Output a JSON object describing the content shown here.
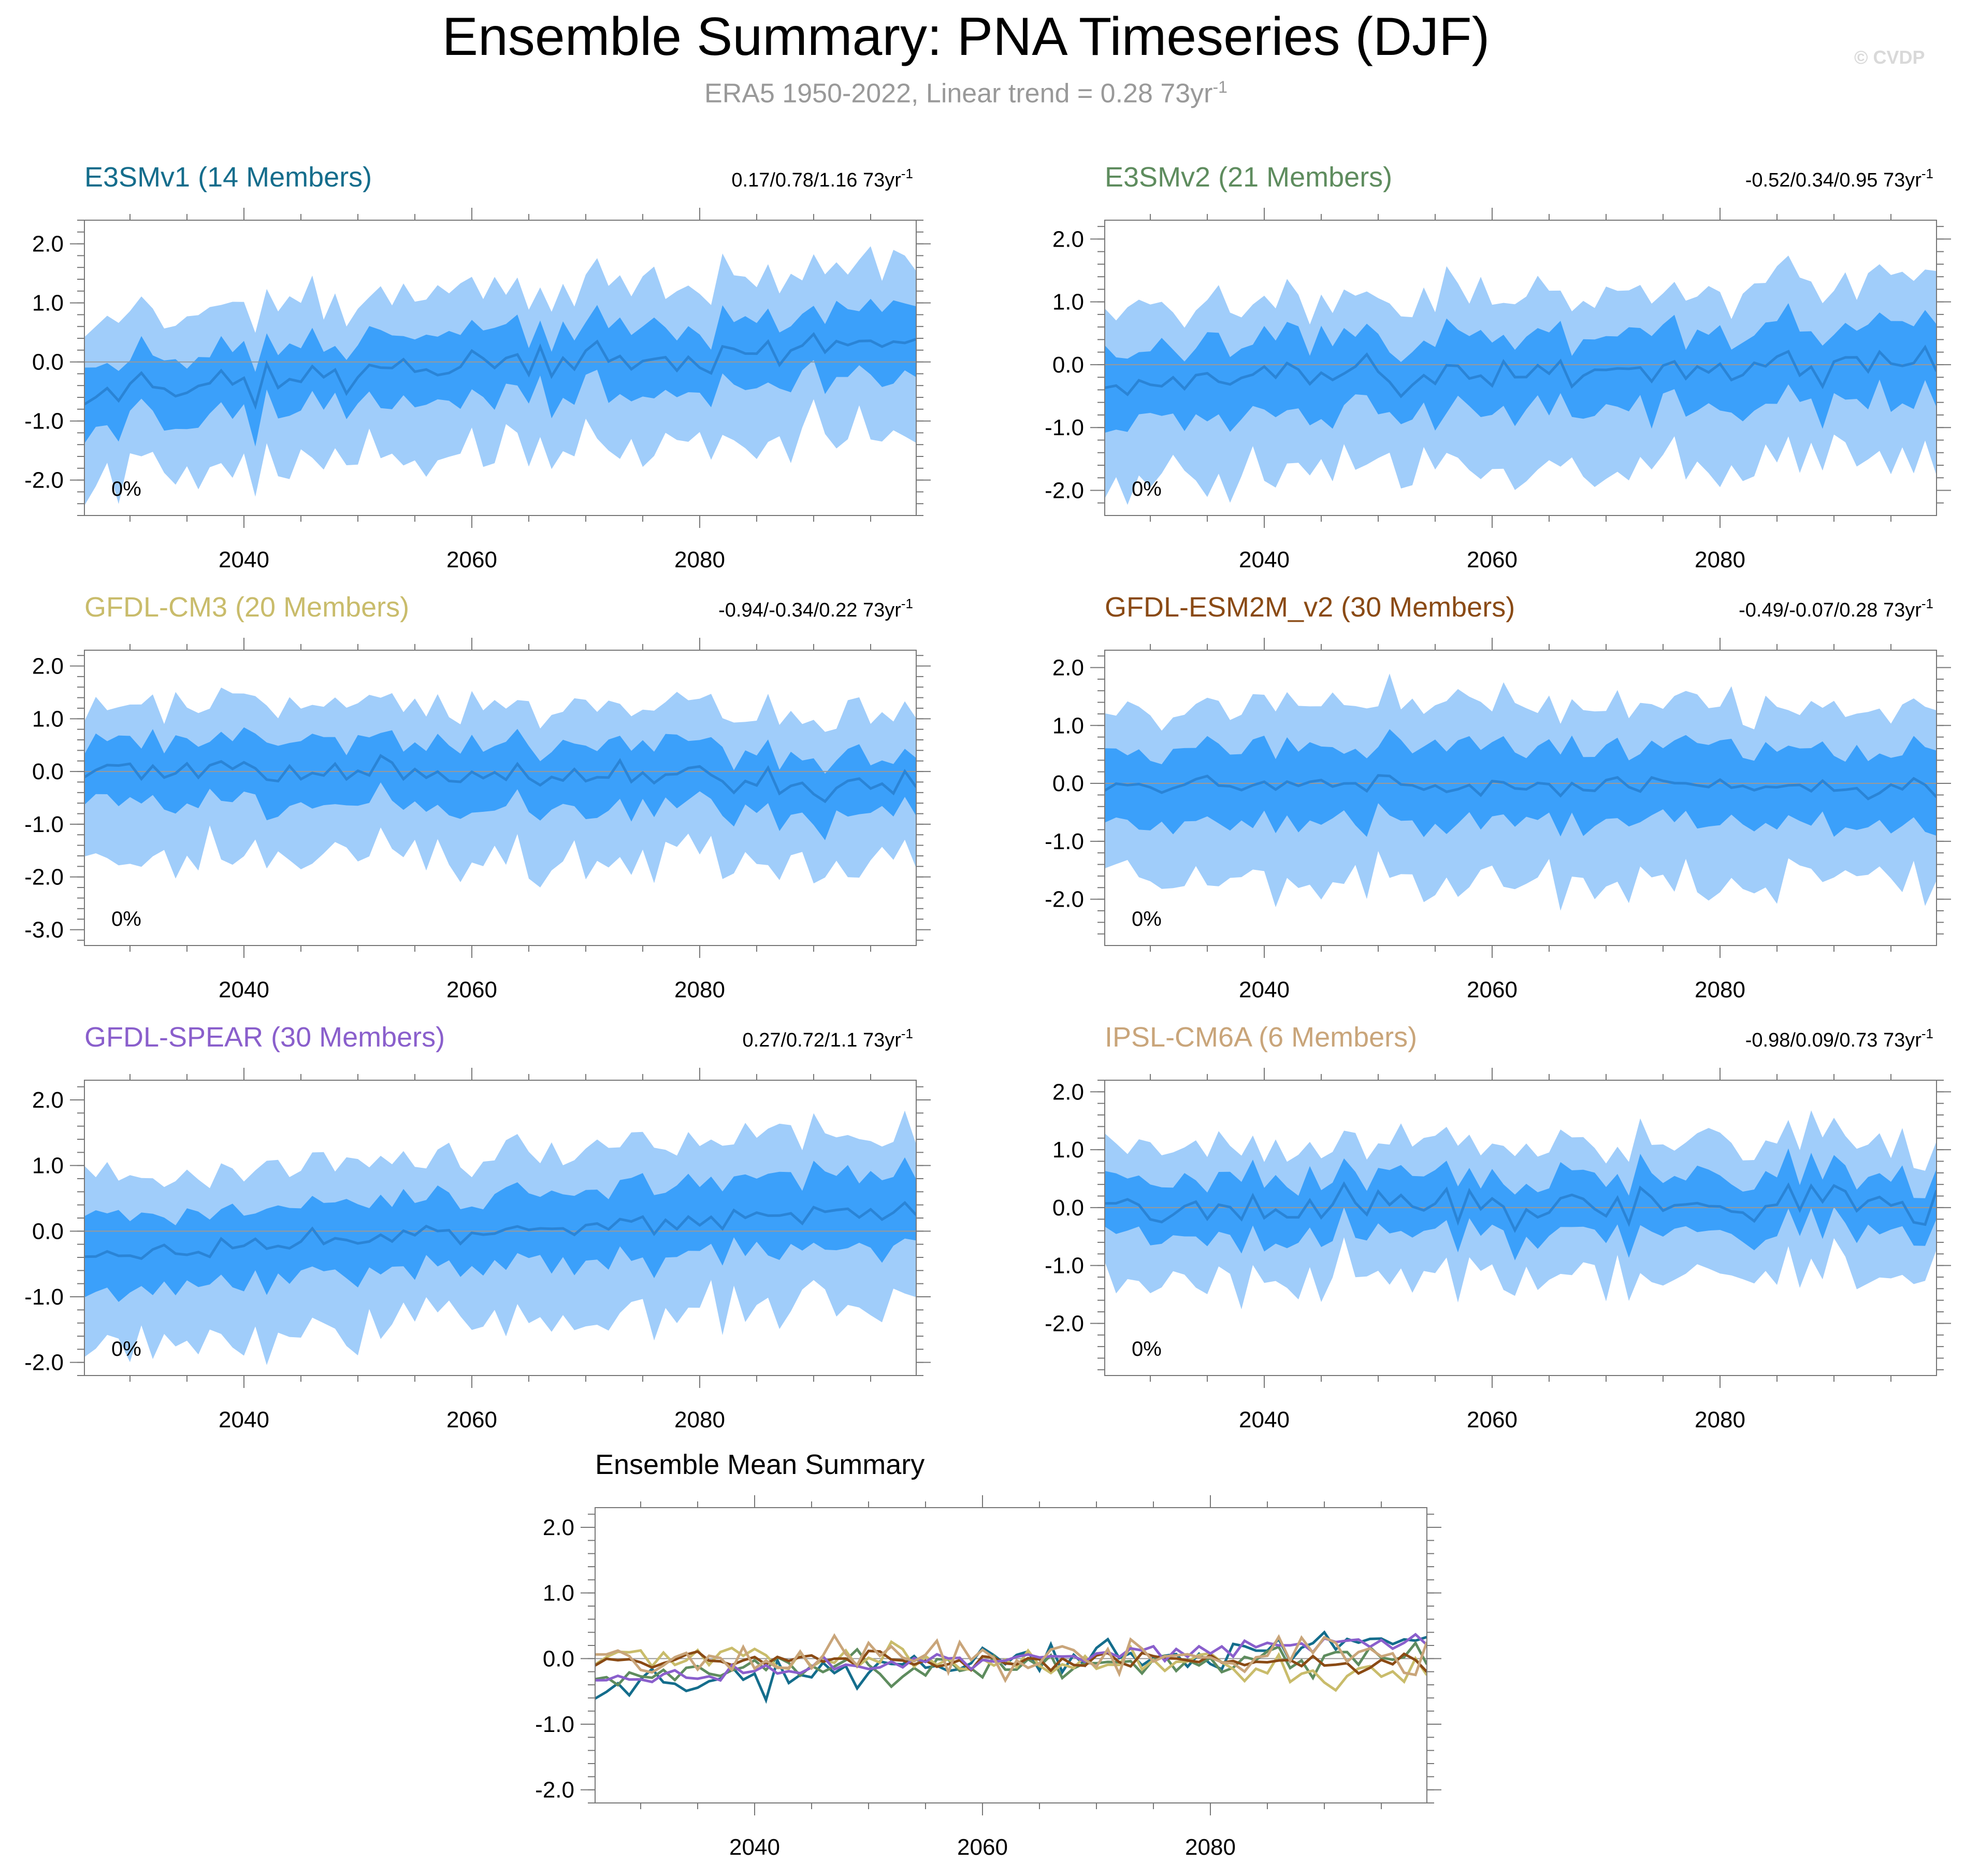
{
  "figure": {
    "title": "Ensemble Summary: PNA Timeseries (DJF)",
    "subtitle_main": "ERA5 1950-2022, Linear trend = 0.28 73yr",
    "subtitle_exp": "-1",
    "watermark": "© CVDP"
  },
  "colors": {
    "outer_band": "#a0cdfa",
    "inner_band": "#3ba0fa",
    "mean_line": "#2a84d6",
    "axis": "#777777",
    "zero_line": "#999999"
  },
  "chart_data": [
    {
      "type": "area",
      "title": "E3SMv1 (14 Members)",
      "title_color": "#146d8c",
      "trend": "0.17/0.78/1.16 73yr",
      "trend_exp": "-1",
      "percent_label": "0%",
      "xlim": [
        2026,
        2099
      ],
      "ylim": [
        -2.6,
        2.4
      ],
      "yticks": [
        -2.0,
        -1.0,
        0.0,
        1.0,
        2.0
      ],
      "ytick_labels": [
        "-2.0",
        "-1.0",
        "0.0",
        "1.0",
        "2.0"
      ],
      "xticks": [
        2040,
        2060,
        2080
      ],
      "seed": 11,
      "mean_bias": -0.45,
      "mean_trend": 0.75,
      "mean_amp": 0.28,
      "inner_half": 0.55,
      "outer_half": 1.25
    },
    {
      "type": "area",
      "title": "E3SMv2 (21 Members)",
      "title_color": "#5e8c5e",
      "trend": "-0.52/0.34/0.95 73yr",
      "trend_exp": "-1",
      "percent_label": "0%",
      "xlim": [
        2026,
        2099
      ],
      "ylim": [
        -2.4,
        2.3
      ],
      "yticks": [
        -2.0,
        -1.0,
        0.0,
        1.0,
        2.0
      ],
      "ytick_labels": [
        "-2.0",
        "-1.0",
        "0.0",
        "1.0",
        "2.0"
      ],
      "xticks": [
        2040,
        2060,
        2080
      ],
      "seed": 23,
      "mean_bias": -0.3,
      "mean_trend": 0.35,
      "mean_amp": 0.25,
      "inner_half": 0.6,
      "outer_half": 1.25
    },
    {
      "type": "area",
      "title": "GFDL-CM3 (20 Members)",
      "title_color": "#c9bc6b",
      "trend": "-0.94/-0.34/0.22 73yr",
      "trend_exp": "-1",
      "percent_label": "0%",
      "xlim": [
        2026,
        2099
      ],
      "ylim": [
        -3.3,
        2.3
      ],
      "yticks": [
        -3.0,
        -2.0,
        -1.0,
        0.0,
        1.0,
        2.0
      ],
      "ytick_labels": [
        "-3.0",
        "-2.0",
        "-1.0",
        "0.0",
        "1.0",
        "2.0"
      ],
      "xticks": [
        2040,
        2060,
        2080
      ],
      "seed": 37,
      "mean_bias": 0.1,
      "mean_trend": -0.35,
      "mean_amp": 0.25,
      "inner_half": 0.6,
      "outer_half": 1.3
    },
    {
      "type": "area",
      "title": "GFDL-ESM2M_v2 (30 Members)",
      "title_color": "#8a4a14",
      "trend": "-0.49/-0.07/0.28 73yr",
      "trend_exp": "-1",
      "percent_label": "0%",
      "xlim": [
        2026,
        2099
      ],
      "ylim": [
        -2.8,
        2.3
      ],
      "yticks": [
        -2.0,
        -1.0,
        0.0,
        1.0,
        2.0
      ],
      "ytick_labels": [
        "-2.0",
        "-1.0",
        "0.0",
        "1.0",
        "2.0"
      ],
      "xticks": [
        2040,
        2060,
        2080
      ],
      "seed": 53,
      "mean_bias": 0.0,
      "mean_trend": -0.07,
      "mean_amp": 0.15,
      "inner_half": 0.65,
      "outer_half": 1.35
    },
    {
      "type": "area",
      "title": "GFDL-SPEAR (30 Members)",
      "title_color": "#8a5fcc",
      "trend": "0.27/0.72/1.1 73yr",
      "trend_exp": "-1",
      "percent_label": "0%",
      "xlim": [
        2026,
        2099
      ],
      "ylim": [
        -2.2,
        2.3
      ],
      "yticks": [
        -2.0,
        -1.0,
        0.0,
        1.0,
        2.0
      ],
      "ytick_labels": [
        "-2.0",
        "-1.0",
        "0.0",
        "1.0",
        "2.0"
      ],
      "xticks": [
        2040,
        2060,
        2080
      ],
      "seed": 71,
      "mean_bias": -0.35,
      "mean_trend": 0.7,
      "mean_amp": 0.15,
      "inner_half": 0.55,
      "outer_half": 1.1
    },
    {
      "type": "area",
      "title": "IPSL-CM6A (6 Members)",
      "title_color": "#c9a57a",
      "trend": "-0.98/0.09/0.73 73yr",
      "trend_exp": "-1",
      "percent_label": "0%",
      "xlim": [
        2026,
        2099
      ],
      "ylim": [
        -2.9,
        2.2
      ],
      "yticks": [
        -2.0,
        -1.0,
        0.0,
        1.0,
        2.0
      ],
      "ytick_labels": [
        "-2.0",
        "-1.0",
        "0.0",
        "1.0",
        "2.0"
      ],
      "xticks": [
        2040,
        2060,
        2080
      ],
      "seed": 89,
      "mean_bias": -0.05,
      "mean_trend": 0.1,
      "mean_amp": 0.4,
      "inner_half": 0.5,
      "outer_half": 1.05
    },
    {
      "type": "line",
      "title": "Ensemble Mean Summary",
      "title_color": "#000000",
      "xlim": [
        2026,
        2099
      ],
      "ylim": [
        -2.2,
        2.3
      ],
      "yticks": [
        -2.0,
        -1.0,
        0.0,
        1.0,
        2.0
      ],
      "ytick_labels": [
        "-2.0",
        "-1.0",
        "0.0",
        "1.0",
        "2.0"
      ],
      "xticks": [
        2040,
        2060,
        2080
      ],
      "series": [
        {
          "name": "E3SMv1",
          "color": "#146d8c"
        },
        {
          "name": "E3SMv2",
          "color": "#5e8c5e"
        },
        {
          "name": "GFDL-CM3",
          "color": "#c9bc6b"
        },
        {
          "name": "GFDL-ESM2M_v2",
          "color": "#8a4a14"
        },
        {
          "name": "GFDL-SPEAR",
          "color": "#8a5fcc"
        },
        {
          "name": "IPSL-CM6A",
          "color": "#c9a57a"
        }
      ]
    }
  ]
}
